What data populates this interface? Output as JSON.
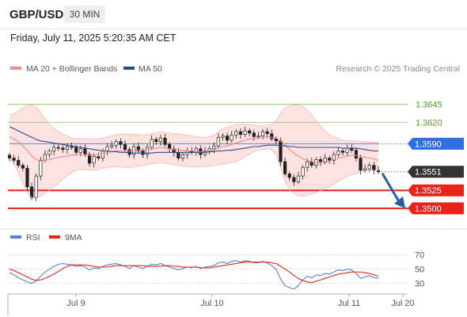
{
  "header": {
    "pair": "GBP/USD",
    "timeframe": "30 MIN"
  },
  "timestamp": "Friday, July 11, 2025 5:20:35 AM CET",
  "legend": {
    "bollinger": "MA 20 + Bollinger Bands",
    "ma50": "MA 50",
    "credit": "Research © 2025 Trading Central",
    "rsi": "RSI",
    "rsi_ma": "9MA"
  },
  "colors": {
    "bollinger": "#f08a84",
    "band_fill": "#fde2e2",
    "ma50": "#2b4a8c",
    "support": "#e8231a",
    "resistance": "#7cc24a",
    "current": "#333333",
    "pivot": "#2f6fe0",
    "arrow": "#2b5aa8",
    "rsi": "#5b7fd6"
  },
  "chart_data": [
    {
      "type": "candlestick",
      "title": "GBP/USD 30 MIN",
      "x_ticks": [
        "Jul 9",
        "Jul 10",
        "Jul 11",
        "Jul 20"
      ],
      "ylim": [
        1.347,
        1.368
      ],
      "levels": [
        {
          "label": "1.3645",
          "value": 1.3645,
          "kind": "resistance"
        },
        {
          "label": "1.3620",
          "value": 1.362,
          "kind": "resistance"
        },
        {
          "label": "1.3590",
          "value": 1.359,
          "kind": "pivot"
        },
        {
          "label": "1.3551",
          "value": 1.3551,
          "kind": "current"
        },
        {
          "label": "1.3525",
          "value": 1.3525,
          "kind": "support"
        },
        {
          "label": "1.3500",
          "value": 1.35,
          "kind": "support"
        }
      ],
      "close": [
        1.357,
        1.3567,
        1.356,
        1.3556,
        1.353,
        1.3515,
        1.3545,
        1.3567,
        1.3575,
        1.358,
        1.3585,
        1.3584,
        1.3582,
        1.3586,
        1.3585,
        1.3578,
        1.3583,
        1.3575,
        1.3563,
        1.3572,
        1.357,
        1.358,
        1.3586,
        1.3588,
        1.3593,
        1.3589,
        1.3582,
        1.3575,
        1.3586,
        1.358,
        1.3575,
        1.3585,
        1.3596,
        1.3593,
        1.3598,
        1.3589,
        1.3583,
        1.3578,
        1.357,
        1.3575,
        1.358,
        1.3578,
        1.3583,
        1.3575,
        1.358,
        1.3583,
        1.3587,
        1.3599,
        1.3601,
        1.3595,
        1.3602,
        1.3607,
        1.3603,
        1.3608,
        1.3605,
        1.36,
        1.3601,
        1.3607,
        1.3604,
        1.3597,
        1.3594,
        1.3565,
        1.3548,
        1.3543,
        1.3537,
        1.3545,
        1.3557,
        1.3565,
        1.356,
        1.3568,
        1.3565,
        1.357,
        1.3567,
        1.3575,
        1.358,
        1.3578,
        1.3584,
        1.3581,
        1.357,
        1.3553,
        1.3555,
        1.356,
        1.3553,
        1.3551
      ],
      "ma20": [
        1.36,
        1.3597,
        1.3593,
        1.3587,
        1.3581,
        1.3573,
        1.3568,
        1.3566,
        1.3567,
        1.3568,
        1.357,
        1.3571,
        1.3572,
        1.3573,
        1.3574,
        1.3575,
        1.3575,
        1.3575,
        1.3574,
        1.3574,
        1.3575,
        1.3577,
        1.3578,
        1.3579,
        1.358,
        1.358,
        1.358,
        1.358,
        1.3581,
        1.3581,
        1.3581,
        1.3582,
        1.3583,
        1.3584,
        1.3585,
        1.3584,
        1.3583,
        1.3582,
        1.3581,
        1.3581,
        1.358,
        1.358,
        1.358,
        1.3579,
        1.3579,
        1.358,
        1.3581,
        1.3584,
        1.3586,
        1.3587,
        1.3589,
        1.3591,
        1.3593,
        1.3595,
        1.3597,
        1.3597,
        1.3598,
        1.3599,
        1.36,
        1.3599,
        1.3598,
        1.3594,
        1.3588,
        1.3582,
        1.3577,
        1.3573,
        1.3569,
        1.3567,
        1.3565,
        1.3563,
        1.3563,
        1.3564,
        1.3566,
        1.3568,
        1.357,
        1.3571,
        1.3573,
        1.3574,
        1.3574,
        1.3572,
        1.3571,
        1.357,
        1.3569,
        1.3567
      ],
      "bb_upper": [
        1.363,
        1.3632,
        1.3636,
        1.364,
        1.3643,
        1.3644,
        1.3641,
        1.3634,
        1.3625,
        1.3617,
        1.3611,
        1.3607,
        1.3604,
        1.3601,
        1.3598,
        1.3597,
        1.3597,
        1.3597,
        1.3597,
        1.3597,
        1.3597,
        1.3598,
        1.36,
        1.3601,
        1.3603,
        1.3603,
        1.3604,
        1.3603,
        1.3603,
        1.3603,
        1.3602,
        1.3603,
        1.3604,
        1.3605,
        1.3607,
        1.3606,
        1.3605,
        1.3604,
        1.3604,
        1.3603,
        1.3602,
        1.3601,
        1.36,
        1.3599,
        1.3599,
        1.36,
        1.3602,
        1.3607,
        1.3611,
        1.3613,
        1.3615,
        1.3617,
        1.3617,
        1.3618,
        1.3617,
        1.3616,
        1.3615,
        1.3615,
        1.3616,
        1.3617,
        1.3622,
        1.3632,
        1.364,
        1.3643,
        1.3644,
        1.3644,
        1.3642,
        1.3637,
        1.363,
        1.3622,
        1.3615,
        1.3608,
        1.3603,
        1.36,
        1.3597,
        1.3595,
        1.3594,
        1.3594,
        1.3594,
        1.3593,
        1.3593,
        1.3592,
        1.3592,
        1.3592
      ],
      "bb_lower": [
        1.357,
        1.3563,
        1.355,
        1.3535,
        1.3522,
        1.3515,
        1.3514,
        1.3517,
        1.3521,
        1.3525,
        1.353,
        1.3535,
        1.354,
        1.3545,
        1.355,
        1.3553,
        1.3554,
        1.3554,
        1.3553,
        1.3553,
        1.3554,
        1.3556,
        1.3557,
        1.3558,
        1.3558,
        1.3558,
        1.3557,
        1.3557,
        1.3558,
        1.3559,
        1.356,
        1.3561,
        1.3562,
        1.3563,
        1.3564,
        1.3563,
        1.3562,
        1.3561,
        1.356,
        1.3559,
        1.3558,
        1.3558,
        1.3558,
        1.3558,
        1.3558,
        1.3559,
        1.356,
        1.3561,
        1.3562,
        1.3563,
        1.3564,
        1.3565,
        1.3568,
        1.3572,
        1.3575,
        1.3579,
        1.3581,
        1.3582,
        1.3583,
        1.3582,
        1.3574,
        1.3556,
        1.3538,
        1.3526,
        1.352,
        1.3518,
        1.3517,
        1.3518,
        1.352,
        1.3522,
        1.3525,
        1.3527,
        1.353,
        1.3534,
        1.3538,
        1.3541,
        1.3544,
        1.3547,
        1.3549,
        1.3551,
        1.3552,
        1.3553,
        1.3553,
        1.3553
      ],
      "ma50": [
        1.3614,
        1.3611,
        1.3608,
        1.3605,
        1.3602,
        1.3599,
        1.3596,
        1.3594,
        1.3593,
        1.3592,
        1.3591,
        1.359,
        1.3589,
        1.3588,
        1.3587,
        1.3586,
        1.3585,
        1.3584,
        1.3583,
        1.3582,
        1.3581,
        1.358,
        1.358,
        1.3579,
        1.3579,
        1.3578,
        1.3578,
        1.3578,
        1.3577,
        1.3577,
        1.3577,
        1.3577,
        1.3577,
        1.3578,
        1.3578,
        1.3578,
        1.3578,
        1.3578,
        1.3578,
        1.3578,
        1.3578,
        1.3578,
        1.3578,
        1.3578,
        1.3578,
        1.3579,
        1.3579,
        1.358,
        1.358,
        1.3581,
        1.3581,
        1.3582,
        1.3583,
        1.3584,
        1.3585,
        1.3586,
        1.3586,
        1.3587,
        1.3588,
        1.3588,
        1.3588,
        1.3587,
        1.3587,
        1.3586,
        1.3586,
        1.3585,
        1.3585,
        1.3585,
        1.3585,
        1.3585,
        1.3585,
        1.3585,
        1.3585,
        1.3585,
        1.3585,
        1.3584,
        1.3584,
        1.3584,
        1.3584,
        1.3583,
        1.3582,
        1.3581,
        1.358,
        1.358
      ]
    },
    {
      "type": "line",
      "title": "RSI",
      "y_ticks": [
        "70",
        "50",
        "30"
      ],
      "ylim": [
        14,
        83
      ],
      "series": [
        {
          "name": "RSI",
          "values": [
            45,
            42,
            38,
            35,
            32,
            30,
            34,
            40,
            46,
            50,
            54,
            57,
            58,
            57,
            56,
            54,
            55,
            53,
            49,
            52,
            51,
            54,
            56,
            57,
            58,
            56,
            54,
            51,
            55,
            53,
            51,
            54,
            57,
            56,
            58,
            55,
            53,
            51,
            49,
            51,
            53,
            52,
            54,
            51,
            53,
            54,
            55,
            59,
            60,
            58,
            61,
            62,
            60,
            62,
            61,
            59,
            59,
            61,
            59,
            55,
            50,
            36,
            27,
            24,
            22,
            27,
            35,
            40,
            38,
            42,
            41,
            44,
            43,
            46,
            49,
            48,
            50,
            49,
            44,
            37,
            39,
            41,
            38,
            37
          ]
        },
        {
          "name": "9MA",
          "values": [
            50,
            48,
            45,
            42,
            39,
            36,
            34,
            35,
            37,
            40,
            43,
            47,
            51,
            54,
            56,
            56,
            56,
            56,
            55,
            54,
            53,
            53,
            53,
            54,
            55,
            55,
            55,
            55,
            55,
            55,
            55,
            54,
            54,
            54,
            54,
            55,
            55,
            54,
            54,
            53,
            53,
            53,
            53,
            52,
            52,
            52,
            53,
            54,
            55,
            56,
            57,
            58,
            59,
            60,
            60,
            60,
            60,
            60,
            60,
            59,
            58,
            54,
            50,
            46,
            41,
            37,
            34,
            32,
            31,
            33,
            35,
            37,
            39,
            41,
            43,
            44,
            45,
            46,
            46,
            46,
            45,
            44,
            42,
            40
          ]
        }
      ]
    }
  ]
}
